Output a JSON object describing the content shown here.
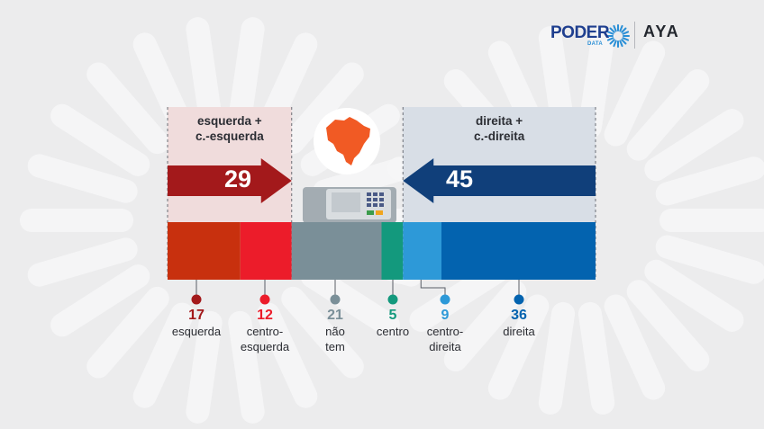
{
  "logos": {
    "poder_word": "PODER",
    "poder_sub": "DATA",
    "aya": "AYA"
  },
  "colors": {
    "background": "#ececed",
    "esquerda": "#c8300e",
    "centro_esquerda": "#ec1c2a",
    "nao_tem": "#7a8f98",
    "centro": "#13997d",
    "centro_direita": "#2d99d8",
    "direita": "#0363af",
    "left_arrow": "#a3191b",
    "right_arrow": "#103f7a",
    "brazil_map": "#f15a24"
  },
  "chart_data": {
    "type": "bar",
    "orientation": "horizontal-stacked",
    "total": 100,
    "categories": [
      "esquerda",
      "centro-esquerda",
      "não tem",
      "centro",
      "centro-direita",
      "direita"
    ],
    "values": [
      17,
      12,
      21,
      5,
      9,
      36
    ],
    "labels": [
      [
        "esquerda"
      ],
      [
        "centro-",
        "esquerda"
      ],
      [
        "não",
        "tem"
      ],
      [
        "centro"
      ],
      [
        "centro-",
        "direita"
      ],
      [
        "direita"
      ]
    ],
    "groups": [
      {
        "label_lines": [
          "esquerda +",
          "c.-esquerda"
        ],
        "value": 29,
        "segments": [
          0,
          1
        ],
        "direction": "right"
      },
      {
        "label_lines": [
          "direita +",
          "c.-direita"
        ],
        "value": 45,
        "segments": [
          4,
          5
        ],
        "direction": "left"
      }
    ]
  }
}
